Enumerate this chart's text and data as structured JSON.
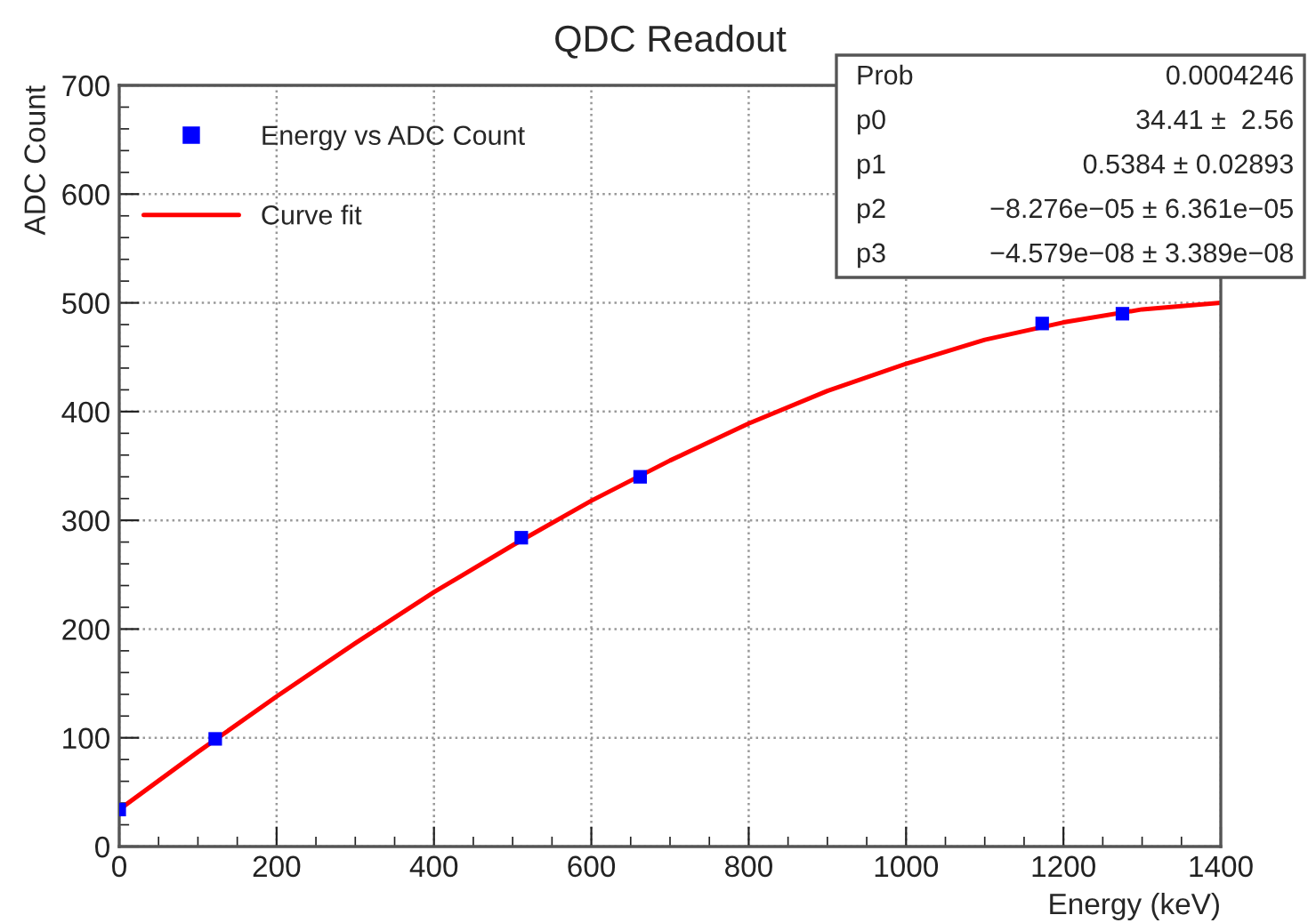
{
  "chart_data": {
    "type": "scatter",
    "title": "QDC Readout",
    "xlabel": "Energy (keV)",
    "ylabel": "ADC Count",
    "series": [
      {
        "name": "Energy vs ADC Count",
        "color": "#0000ff",
        "marker": "square",
        "x": [
          0,
          122,
          511,
          662,
          1173,
          1275
        ],
        "values": [
          34,
          99,
          284,
          340,
          481,
          490
        ]
      },
      {
        "name": "Curve fit",
        "type": "line",
        "color": "#ff0000",
        "marker": "none",
        "line_style": "solid",
        "x": [
          0,
          100,
          200,
          300,
          400,
          500,
          600,
          700,
          800,
          900,
          1000,
          1100,
          1200,
          1300,
          1400
        ],
        "values": [
          34,
          87,
          138,
          187,
          234,
          277,
          318,
          355,
          389,
          419,
          444,
          466,
          482,
          494,
          500
        ]
      }
    ],
    "xlim": [
      0,
      1400
    ],
    "ylim": [
      0,
      700
    ],
    "xticks": [
      0,
      200,
      400,
      600,
      800,
      1000,
      1200,
      1400
    ],
    "yticks": [
      0,
      100,
      200,
      300,
      400,
      500,
      600,
      700
    ],
    "grid": true,
    "legend": "top left",
    "annotations": [
      "Prob",
      "0.0004246",
      "p0",
      "34.41 ±  2.56",
      "p1",
      "0.5384 ± 0.02893",
      "p2",
      "−8.276e−05 ± 6.361e−05",
      "p3",
      "−4.579e−08 ± 3.389e−08"
    ]
  }
}
